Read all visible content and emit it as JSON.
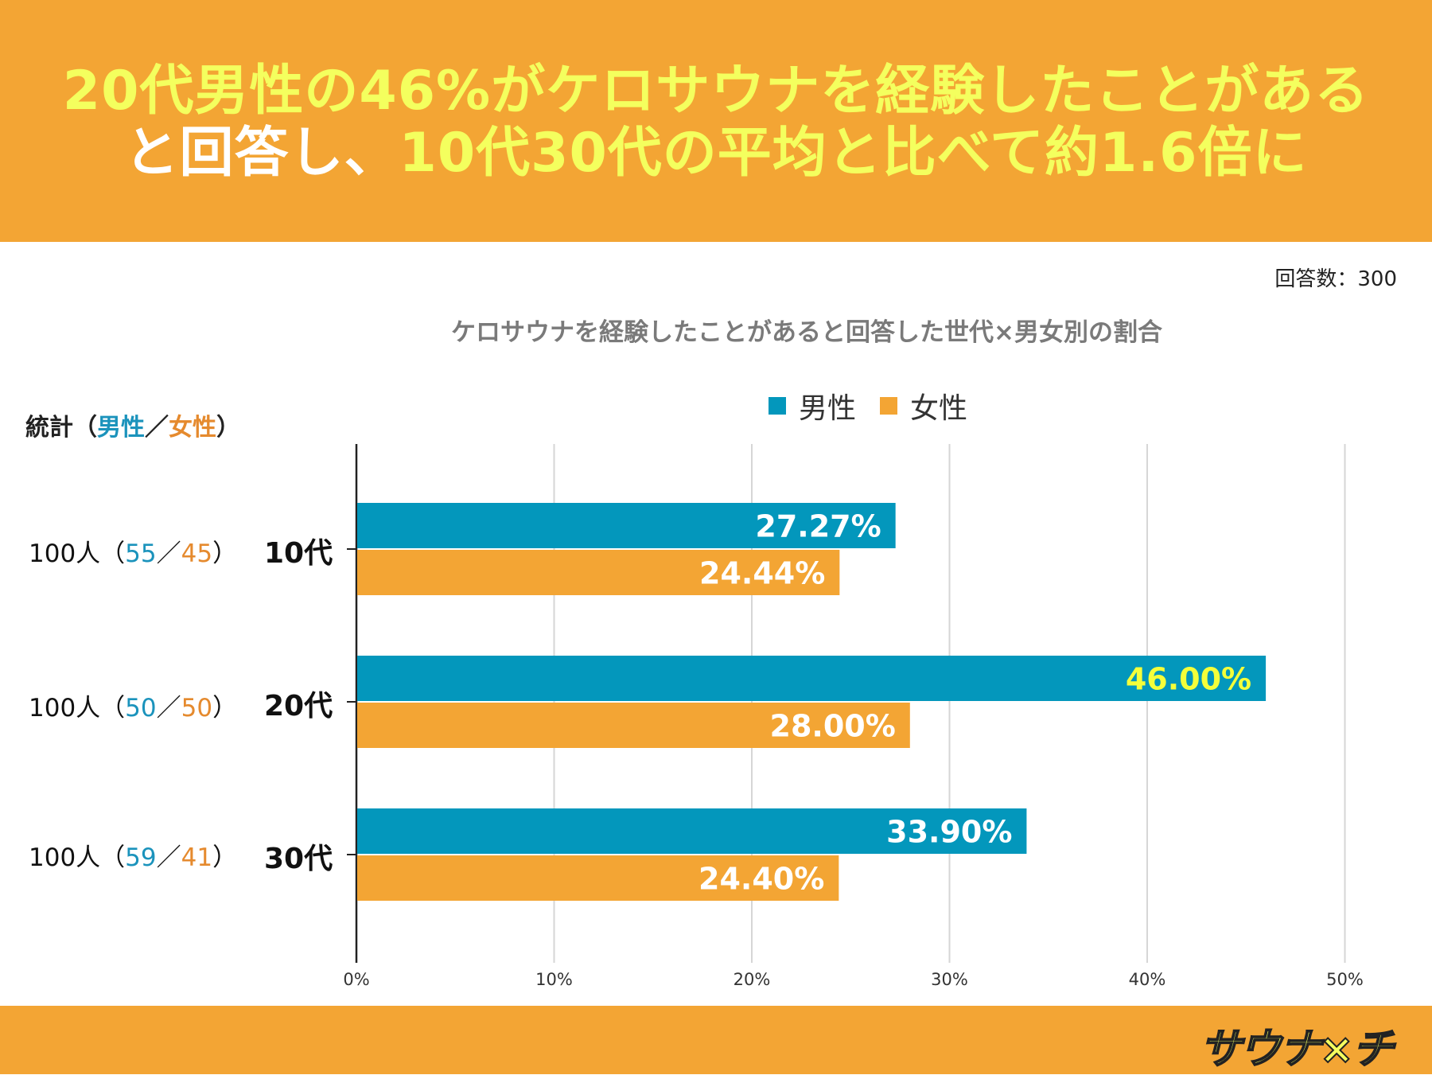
{
  "header": {
    "line1": "20代男性の46%がケロサウナを経験したことがある",
    "line2_white": "と回答し、",
    "line2_yellow": "10代30代の平均と比べて約1.6倍に"
  },
  "respondents": "回答数：300",
  "stats_header": {
    "prefix": "統計（",
    "male": "男性",
    "sep": "／",
    "female": "女性",
    "suffix": "）"
  },
  "rows": [
    {
      "count": "100人（",
      "male": "55",
      "sep": "／",
      "female": "45",
      "close": "）",
      "category": "10代"
    },
    {
      "count": "100人（",
      "male": "50",
      "sep": "／",
      "female": "50",
      "close": "）",
      "category": "20代"
    },
    {
      "count": "100人（",
      "male": "59",
      "sep": "／",
      "female": "41",
      "close": "）",
      "category": "30代"
    }
  ],
  "colors": {
    "male": "#0397BC",
    "female": "#F3A534",
    "highlight": "#F4FF3A"
  },
  "logo": "サウナ×チ",
  "chart_data": {
    "type": "bar",
    "orientation": "horizontal",
    "title": "ケロサウナを経験したことがあると回答した世代×男女別の割合",
    "categories": [
      "10代",
      "20代",
      "30代"
    ],
    "series": [
      {
        "name": "男性",
        "values": [
          27.27,
          46.0,
          33.9
        ],
        "labels": [
          "27.27%",
          "46.00%",
          "33.90%"
        ]
      },
      {
        "name": "女性",
        "values": [
          24.44,
          28.0,
          24.4
        ],
        "labels": [
          "24.44%",
          "28.00%",
          "24.40%"
        ]
      }
    ],
    "xlim": [
      0,
      50
    ],
    "xticks": [
      "0%",
      "10%",
      "20%",
      "30%",
      "40%",
      "50%"
    ],
    "highlight_label": "46.00%",
    "legend": [
      "男性",
      "女性"
    ],
    "legend_position": "top"
  }
}
